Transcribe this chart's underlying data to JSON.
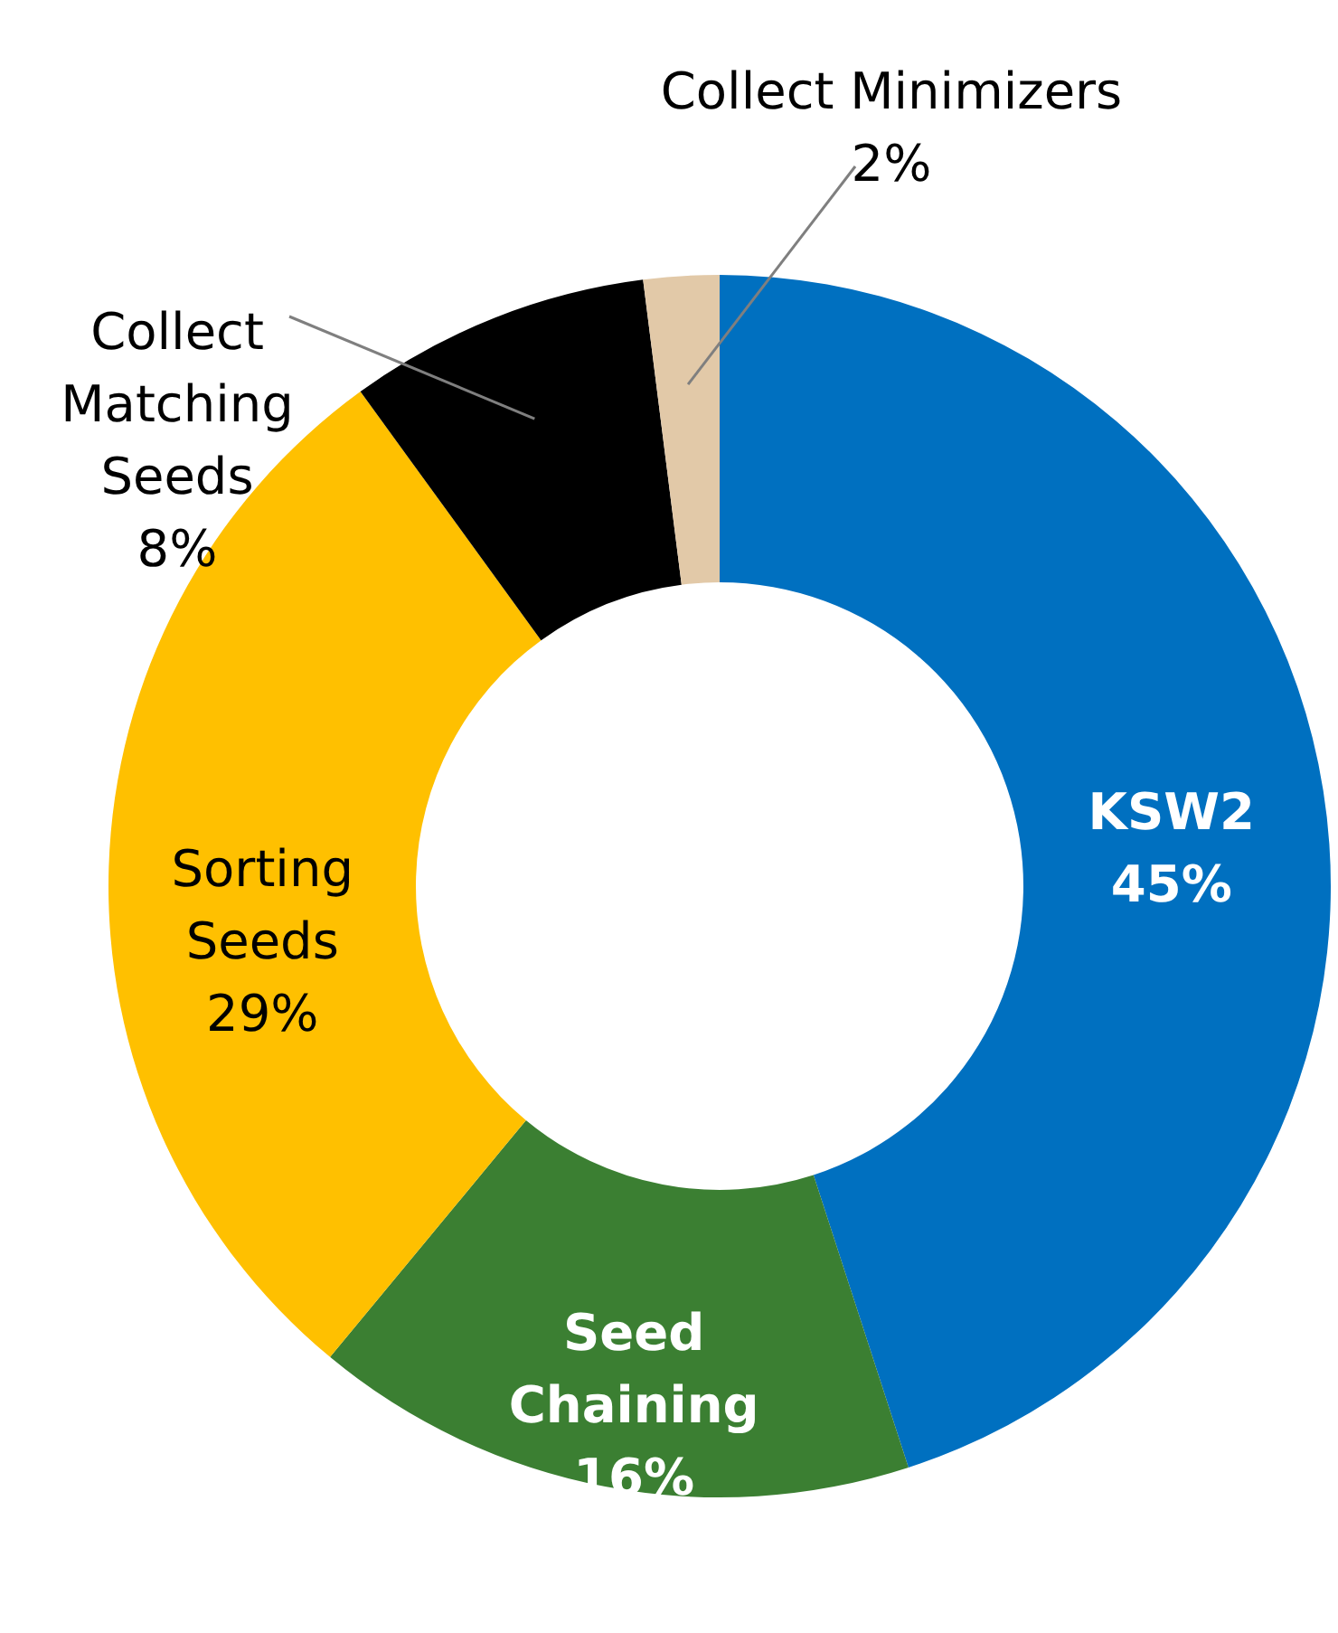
{
  "chart_data": {
    "type": "donut",
    "categories": [
      "KSW2",
      "Seed Chaining",
      "Sorting Seeds",
      "Collect Matching Seeds",
      "Collect Minimizers"
    ],
    "values": [
      45,
      16,
      29,
      8,
      2
    ],
    "colors": [
      "#0070c0",
      "#3b7f32",
      "#ffc000",
      "#000000",
      "#e2c9a8"
    ],
    "value_labels": [
      "45%",
      "16%",
      "29%",
      "8%",
      "2%"
    ]
  }
}
